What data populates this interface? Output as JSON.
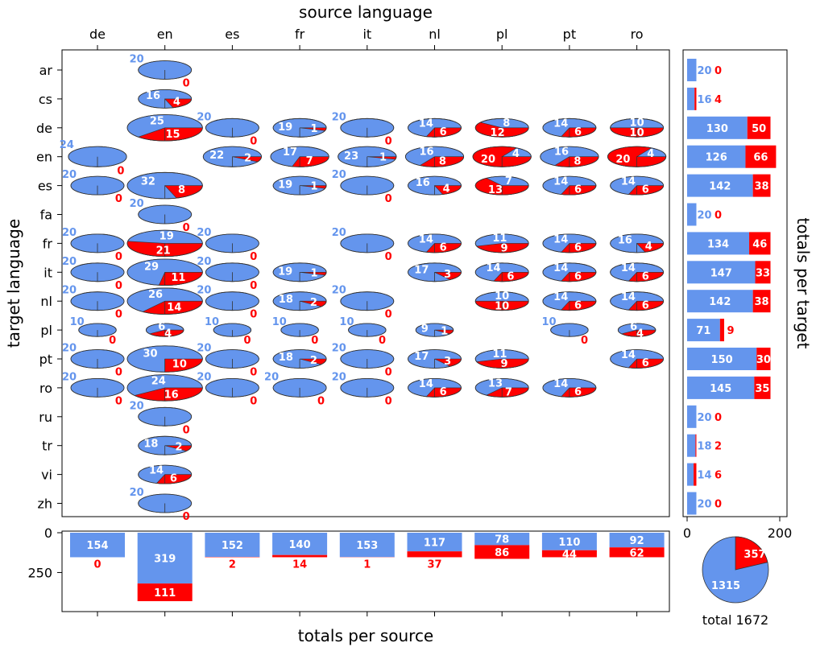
{
  "colors": {
    "blue": "#6495ED",
    "red": "#FF0000",
    "frame": "#000000"
  },
  "chart_data": [
    {
      "type": "pie-matrix",
      "xlabel": "source language",
      "ylabel": "target language",
      "sources": [
        "de",
        "en",
        "es",
        "fr",
        "it",
        "nl",
        "pl",
        "pt",
        "ro"
      ],
      "targets": [
        "ar",
        "cs",
        "de",
        "en",
        "es",
        "fa",
        "fr",
        "it",
        "nl",
        "pl",
        "pt",
        "ro",
        "ru",
        "tr",
        "vi",
        "zh"
      ],
      "cells": [
        {
          "src": "en",
          "tgt": "ar",
          "blue": 20,
          "red": 0
        },
        {
          "src": "en",
          "tgt": "cs",
          "blue": 16,
          "red": 4
        },
        {
          "src": "en",
          "tgt": "de",
          "blue": 25,
          "red": 15
        },
        {
          "src": "es",
          "tgt": "de",
          "blue": 20,
          "red": 0
        },
        {
          "src": "fr",
          "tgt": "de",
          "blue": 19,
          "red": 1
        },
        {
          "src": "it",
          "tgt": "de",
          "blue": 20,
          "red": 0
        },
        {
          "src": "nl",
          "tgt": "de",
          "blue": 14,
          "red": 6
        },
        {
          "src": "pl",
          "tgt": "de",
          "blue": 8,
          "red": 12
        },
        {
          "src": "pt",
          "tgt": "de",
          "blue": 14,
          "red": 6
        },
        {
          "src": "ro",
          "tgt": "de",
          "blue": 10,
          "red": 10
        },
        {
          "src": "de",
          "tgt": "en",
          "blue": 24,
          "red": 0
        },
        {
          "src": "es",
          "tgt": "en",
          "blue": 22,
          "red": 2
        },
        {
          "src": "fr",
          "tgt": "en",
          "blue": 17,
          "red": 7
        },
        {
          "src": "it",
          "tgt": "en",
          "blue": 23,
          "red": 1
        },
        {
          "src": "nl",
          "tgt": "en",
          "blue": 16,
          "red": 8
        },
        {
          "src": "pl",
          "tgt": "en",
          "blue": 4,
          "red": 20
        },
        {
          "src": "pt",
          "tgt": "en",
          "blue": 16,
          "red": 8
        },
        {
          "src": "ro",
          "tgt": "en",
          "blue": 4,
          "red": 20
        },
        {
          "src": "de",
          "tgt": "es",
          "blue": 20,
          "red": 0
        },
        {
          "src": "en",
          "tgt": "es",
          "blue": 32,
          "red": 8
        },
        {
          "src": "fr",
          "tgt": "es",
          "blue": 19,
          "red": 1
        },
        {
          "src": "it",
          "tgt": "es",
          "blue": 20,
          "red": 0
        },
        {
          "src": "nl",
          "tgt": "es",
          "blue": 16,
          "red": 4
        },
        {
          "src": "pl",
          "tgt": "es",
          "blue": 7,
          "red": 13
        },
        {
          "src": "pt",
          "tgt": "es",
          "blue": 14,
          "red": 6
        },
        {
          "src": "ro",
          "tgt": "es",
          "blue": 14,
          "red": 6
        },
        {
          "src": "en",
          "tgt": "fa",
          "blue": 20,
          "red": 0
        },
        {
          "src": "de",
          "tgt": "fr",
          "blue": 20,
          "red": 0
        },
        {
          "src": "en",
          "tgt": "fr",
          "blue": 19,
          "red": 21
        },
        {
          "src": "es",
          "tgt": "fr",
          "blue": 20,
          "red": 0
        },
        {
          "src": "it",
          "tgt": "fr",
          "blue": 20,
          "red": 0
        },
        {
          "src": "nl",
          "tgt": "fr",
          "blue": 14,
          "red": 6
        },
        {
          "src": "pl",
          "tgt": "fr",
          "blue": 11,
          "red": 9
        },
        {
          "src": "pt",
          "tgt": "fr",
          "blue": 14,
          "red": 6
        },
        {
          "src": "ro",
          "tgt": "fr",
          "blue": 16,
          "red": 4
        },
        {
          "src": "de",
          "tgt": "it",
          "blue": 20,
          "red": 0
        },
        {
          "src": "en",
          "tgt": "it",
          "blue": 29,
          "red": 11
        },
        {
          "src": "es",
          "tgt": "it",
          "blue": 20,
          "red": 0
        },
        {
          "src": "fr",
          "tgt": "it",
          "blue": 19,
          "red": 1
        },
        {
          "src": "nl",
          "tgt": "it",
          "blue": 17,
          "red": 3
        },
        {
          "src": "pl",
          "tgt": "it",
          "blue": 14,
          "red": 6
        },
        {
          "src": "pt",
          "tgt": "it",
          "blue": 14,
          "red": 6
        },
        {
          "src": "ro",
          "tgt": "it",
          "blue": 14,
          "red": 6
        },
        {
          "src": "de",
          "tgt": "nl",
          "blue": 20,
          "red": 0
        },
        {
          "src": "en",
          "tgt": "nl",
          "blue": 26,
          "red": 14
        },
        {
          "src": "es",
          "tgt": "nl",
          "blue": 20,
          "red": 0
        },
        {
          "src": "fr",
          "tgt": "nl",
          "blue": 18,
          "red": 2
        },
        {
          "src": "it",
          "tgt": "nl",
          "blue": 20,
          "red": 0
        },
        {
          "src": "pl",
          "tgt": "nl",
          "blue": 10,
          "red": 10
        },
        {
          "src": "pt",
          "tgt": "nl",
          "blue": 14,
          "red": 6
        },
        {
          "src": "ro",
          "tgt": "nl",
          "blue": 14,
          "red": 6
        },
        {
          "src": "de",
          "tgt": "pl",
          "blue": 10,
          "red": 0
        },
        {
          "src": "en",
          "tgt": "pl",
          "blue": 6,
          "red": 4
        },
        {
          "src": "es",
          "tgt": "pl",
          "blue": 10,
          "red": 0
        },
        {
          "src": "fr",
          "tgt": "pl",
          "blue": 10,
          "red": 0
        },
        {
          "src": "it",
          "tgt": "pl",
          "blue": 10,
          "red": 0
        },
        {
          "src": "nl",
          "tgt": "pl",
          "blue": 9,
          "red": 1
        },
        {
          "src": "pt",
          "tgt": "pl",
          "blue": 10,
          "red": 0
        },
        {
          "src": "ro",
          "tgt": "pl",
          "blue": 6,
          "red": 4
        },
        {
          "src": "de",
          "tgt": "pt",
          "blue": 20,
          "red": 0
        },
        {
          "src": "en",
          "tgt": "pt",
          "blue": 30,
          "red": 10
        },
        {
          "src": "es",
          "tgt": "pt",
          "blue": 20,
          "red": 0
        },
        {
          "src": "fr",
          "tgt": "pt",
          "blue": 18,
          "red": 2
        },
        {
          "src": "it",
          "tgt": "pt",
          "blue": 20,
          "red": 0
        },
        {
          "src": "nl",
          "tgt": "pt",
          "blue": 17,
          "red": 3
        },
        {
          "src": "pl",
          "tgt": "pt",
          "blue": 11,
          "red": 9
        },
        {
          "src": "ro",
          "tgt": "pt",
          "blue": 14,
          "red": 6
        },
        {
          "src": "de",
          "tgt": "ro",
          "blue": 20,
          "red": 0
        },
        {
          "src": "en",
          "tgt": "ro",
          "blue": 24,
          "red": 16
        },
        {
          "src": "es",
          "tgt": "ro",
          "blue": 20,
          "red": 0
        },
        {
          "src": "fr",
          "tgt": "ro",
          "blue": 20,
          "red": 0
        },
        {
          "src": "it",
          "tgt": "ro",
          "blue": 20,
          "red": 0
        },
        {
          "src": "nl",
          "tgt": "ro",
          "blue": 14,
          "red": 6
        },
        {
          "src": "pl",
          "tgt": "ro",
          "blue": 13,
          "red": 7
        },
        {
          "src": "pt",
          "tgt": "ro",
          "blue": 14,
          "red": 6
        },
        {
          "src": "en",
          "tgt": "ru",
          "blue": 20,
          "red": 0
        },
        {
          "src": "en",
          "tgt": "tr",
          "blue": 18,
          "red": 2
        },
        {
          "src": "en",
          "tgt": "vi",
          "blue": 14,
          "red": 6
        },
        {
          "src": "en",
          "tgt": "zh",
          "blue": 20,
          "red": 0
        }
      ]
    },
    {
      "type": "bar",
      "orientation": "horizontal",
      "stacked": true,
      "ylabel": "totals per target",
      "categories": [
        "ar",
        "cs",
        "de",
        "en",
        "es",
        "fa",
        "fr",
        "it",
        "nl",
        "pl",
        "pt",
        "ro",
        "ru",
        "tr",
        "vi",
        "zh"
      ],
      "blue": [
        20,
        16,
        130,
        126,
        142,
        20,
        134,
        147,
        142,
        71,
        150,
        145,
        20,
        18,
        14,
        20
      ],
      "red": [
        0,
        4,
        50,
        66,
        38,
        0,
        46,
        33,
        38,
        9,
        30,
        35,
        0,
        2,
        6,
        0
      ],
      "xlim": [
        0,
        200
      ],
      "xticks": [
        0,
        200
      ]
    },
    {
      "type": "bar",
      "orientation": "vertical-inverted",
      "stacked": true,
      "xlabel": "totals per source",
      "categories": [
        "de",
        "en",
        "es",
        "fr",
        "it",
        "nl",
        "pl",
        "pt",
        "ro"
      ],
      "blue": [
        154,
        319,
        152,
        140,
        153,
        117,
        78,
        110,
        92
      ],
      "red": [
        0,
        111,
        2,
        14,
        1,
        37,
        86,
        44,
        62
      ],
      "ylim": [
        0,
        450
      ],
      "yticks": [
        0,
        250
      ]
    },
    {
      "type": "pie",
      "values": [
        1315,
        357
      ],
      "xlabel": "total 1672"
    }
  ]
}
